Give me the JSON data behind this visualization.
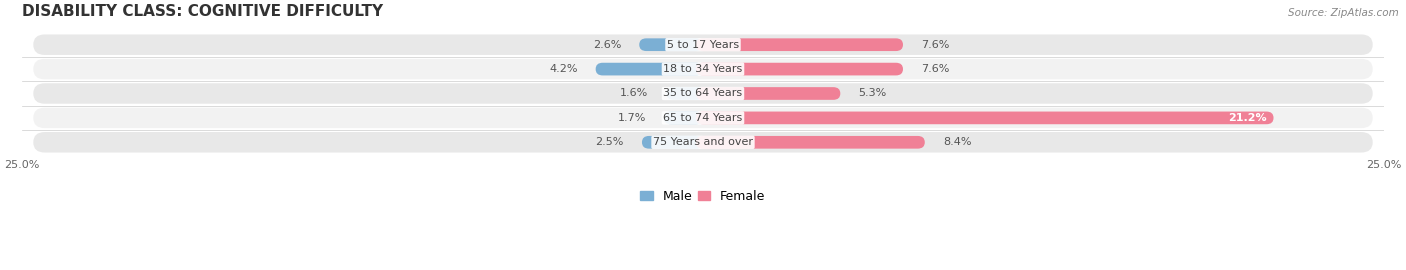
{
  "title": "DISABILITY CLASS: COGNITIVE DIFFICULTY",
  "source": "Source: ZipAtlas.com",
  "categories": [
    "5 to 17 Years",
    "18 to 34 Years",
    "35 to 64 Years",
    "65 to 74 Years",
    "75 Years and over"
  ],
  "male_values": [
    2.6,
    4.2,
    1.6,
    1.7,
    2.5
  ],
  "female_values": [
    7.6,
    7.6,
    5.3,
    21.2,
    8.4
  ],
  "max_val": 25.0,
  "male_color": "#7bafd4",
  "female_color": "#f08096",
  "male_light_color": "#aecde8",
  "female_light_color": "#f4b8c8",
  "row_bg": "#e8e8e8",
  "row_bg2": "#f2f2f2",
  "bar_height": 0.52,
  "title_fontsize": 11,
  "label_fontsize": 8,
  "axis_label_fontsize": 8,
  "cat_label_fontsize": 8
}
